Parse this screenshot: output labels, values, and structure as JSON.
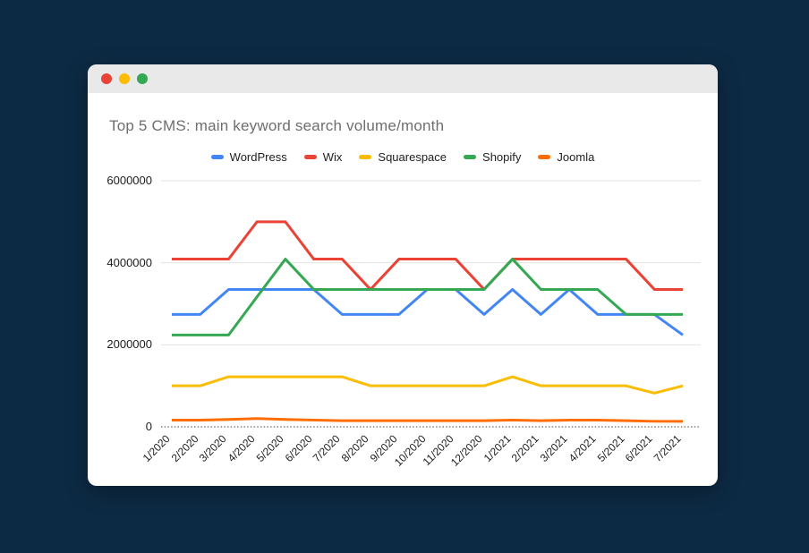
{
  "window": {
    "background_color": "#0d2a44",
    "titlebar_color": "#e9e9e9",
    "body_color": "#ffffff",
    "traffic_lights": [
      {
        "name": "close",
        "color": "#ea4335"
      },
      {
        "name": "minimize",
        "color": "#fbbc04"
      },
      {
        "name": "maximize",
        "color": "#34a853"
      }
    ]
  },
  "chart_data": {
    "type": "line",
    "title": "Top 5 CMS: main keyword search volume/month",
    "title_color": "#6e6e6e",
    "legend_position": "top",
    "grid": true,
    "grid_color": "#e3e3e3",
    "baseline_color": "#424242",
    "baseline_style": "dotted",
    "axis_label_color": "#1c1c1c",
    "xlabel": "",
    "ylabel": "",
    "ylim": [
      0,
      6000000
    ],
    "y_ticks": [
      0,
      2000000,
      4000000,
      6000000
    ],
    "y_tick_labels": [
      "0",
      "2000000",
      "4000000",
      "6000000"
    ],
    "x_labels": [
      "1/2020",
      "2/2020",
      "3/2020",
      "4/2020",
      "5/2020",
      "6/2020",
      "7/2020",
      "8/2020",
      "9/2020",
      "10/2020",
      "11/2020",
      "12/2020",
      "1/2021",
      "2/2021",
      "3/2021",
      "4/2021",
      "5/2021",
      "6/2021",
      "7/2021"
    ],
    "series": [
      {
        "name": "WordPress",
        "color": "#4285f4",
        "values": [
          2740000,
          2740000,
          3350000,
          3350000,
          3350000,
          3350000,
          2740000,
          2740000,
          2740000,
          3350000,
          3350000,
          2740000,
          3350000,
          2740000,
          3350000,
          2740000,
          2740000,
          2740000,
          2240000
        ]
      },
      {
        "name": "Wix",
        "color": "#ea4335",
        "values": [
          4090000,
          4090000,
          4090000,
          5000000,
          5000000,
          4090000,
          4090000,
          3350000,
          4090000,
          4090000,
          4090000,
          3350000,
          4090000,
          4090000,
          4090000,
          4090000,
          4090000,
          3350000,
          3350000
        ]
      },
      {
        "name": "Squarespace",
        "color": "#fbbc04",
        "values": [
          1000000,
          1000000,
          1220000,
          1220000,
          1220000,
          1220000,
          1220000,
          1000000,
          1000000,
          1000000,
          1000000,
          1000000,
          1220000,
          1000000,
          1000000,
          1000000,
          1000000,
          823000,
          1000000
        ]
      },
      {
        "name": "Shopify",
        "color": "#34a853",
        "values": [
          2240000,
          2240000,
          2240000,
          3170000,
          4090000,
          3350000,
          3350000,
          3350000,
          3350000,
          3350000,
          3350000,
          3350000,
          4090000,
          3350000,
          3350000,
          3350000,
          2740000,
          2740000,
          2740000
        ]
      },
      {
        "name": "Joomla",
        "color": "#ff6d01",
        "values": [
          165000,
          165000,
          180000,
          201000,
          180000,
          165000,
          150000,
          150000,
          150000,
          150000,
          150000,
          150000,
          165000,
          150000,
          165000,
          165000,
          150000,
          135000,
          135000
        ]
      }
    ]
  }
}
